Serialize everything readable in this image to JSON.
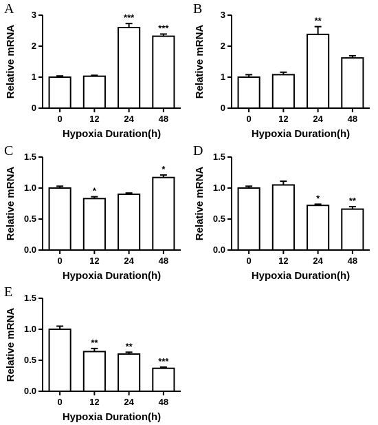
{
  "global": {
    "xlabel": "Hypoxia Duration(h)",
    "ylabel": "Relative mRNA",
    "categories": [
      "0",
      "12",
      "24",
      "48"
    ],
    "bar_fill": "#ffffff",
    "bar_stroke": "#000000",
    "bar_stroke_width": 2,
    "axis_color": "#000000",
    "background": "#ffffff",
    "font_family": "Arial",
    "label_fontsize": 15,
    "tick_fontsize": 13,
    "panel_label_fontsize": 20,
    "err_cap_width": 10
  },
  "panels": [
    {
      "id": "A",
      "type": "bar",
      "ylim": [
        0,
        3
      ],
      "yticks": [
        0,
        1,
        2,
        3
      ],
      "values": [
        1.0,
        1.03,
        2.6,
        2.32
      ],
      "errors": [
        0.04,
        0.03,
        0.13,
        0.07
      ],
      "sig": [
        "",
        "",
        "***",
        "***"
      ]
    },
    {
      "id": "B",
      "type": "bar",
      "ylim": [
        0,
        3
      ],
      "yticks": [
        0,
        1,
        2,
        3
      ],
      "values": [
        1.0,
        1.08,
        2.38,
        1.62
      ],
      "errors": [
        0.08,
        0.08,
        0.25,
        0.07
      ],
      "sig": [
        "",
        "",
        "**",
        ""
      ]
    },
    {
      "id": "C",
      "type": "bar",
      "ylim": [
        0,
        1.5
      ],
      "yticks": [
        0.0,
        0.5,
        1.0,
        1.5
      ],
      "values": [
        1.0,
        0.83,
        0.9,
        1.17
      ],
      "errors": [
        0.03,
        0.03,
        0.02,
        0.04
      ],
      "sig": [
        "",
        "*",
        "",
        "*"
      ]
    },
    {
      "id": "D",
      "type": "bar",
      "ylim": [
        0,
        1.5
      ],
      "yticks": [
        0.0,
        0.5,
        1.0,
        1.5
      ],
      "values": [
        1.0,
        1.05,
        0.72,
        0.66
      ],
      "errors": [
        0.03,
        0.06,
        0.02,
        0.04
      ],
      "sig": [
        "",
        "",
        "*",
        "**"
      ]
    },
    {
      "id": "E",
      "type": "bar",
      "ylim": [
        0,
        1.5
      ],
      "yticks": [
        0.0,
        0.5,
        1.0,
        1.5
      ],
      "values": [
        1.0,
        0.64,
        0.6,
        0.37
      ],
      "errors": [
        0.05,
        0.05,
        0.03,
        0.02
      ],
      "sig": [
        "",
        "**",
        "**",
        "***"
      ]
    }
  ]
}
